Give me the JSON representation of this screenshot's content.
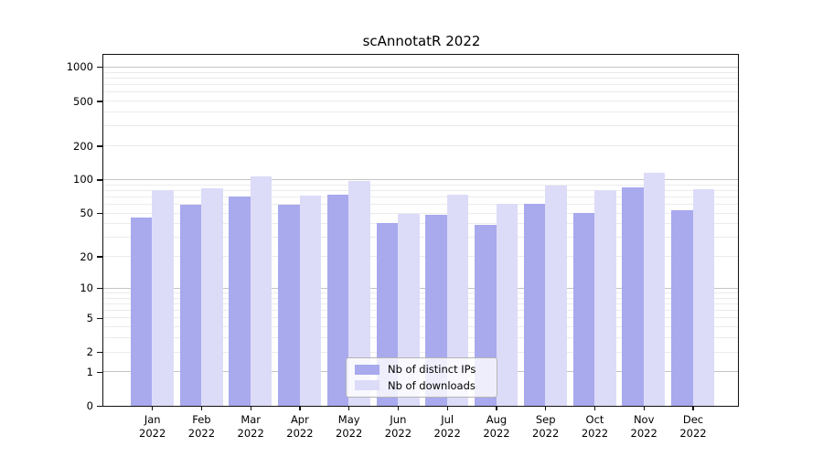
{
  "chart_data": {
    "type": "bar",
    "title": "scAnnotatR 2022",
    "x": {
      "categories": [
        "Jan",
        "Feb",
        "Mar",
        "Apr",
        "May",
        "Jun",
        "Jul",
        "Aug",
        "Sep",
        "Oct",
        "Nov",
        "Dec"
      ],
      "year_label": "2022"
    },
    "y_axis": {
      "scale": "log(1+x)",
      "tick_values": [
        1000,
        500,
        200,
        100,
        50,
        20,
        10,
        5,
        2,
        1,
        0
      ],
      "ylim": [
        0,
        1280
      ],
      "grid": "major-and-minor-log-gridlines"
    },
    "series": [
      {
        "name": "Nb of distinct IPs",
        "color": "#a9a9ee",
        "values": [
          46,
          59,
          71,
          59,
          73,
          41,
          48,
          39,
          61,
          50,
          86,
          53
        ]
      },
      {
        "name": "Nb of downloads",
        "color": "#dcdcf8",
        "values": [
          81,
          83,
          106,
          72,
          97,
          49,
          73,
          61,
          88,
          81,
          115,
          82
        ]
      }
    ],
    "legend": {
      "position": "bottom-center",
      "entries": [
        "Nb of distinct IPs",
        "Nb of downloads"
      ]
    }
  }
}
